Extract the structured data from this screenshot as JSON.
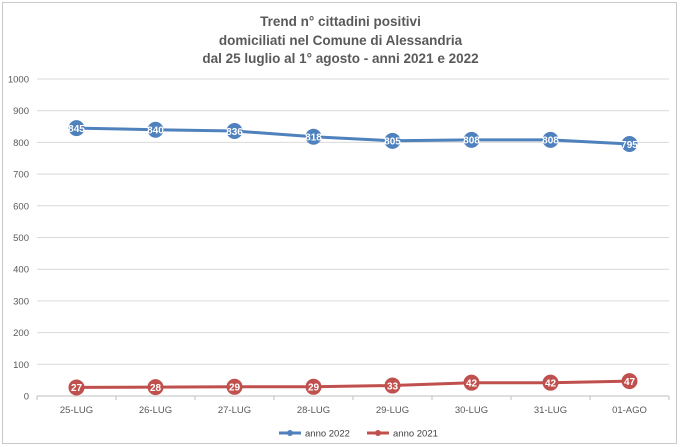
{
  "chart_data": {
    "type": "line",
    "title_lines": [
      "Trend n° cittadini positivi",
      "domiciliati nel Comune di Alessandria",
      "dal 25 luglio al 1° agosto - anni 2021 e 2022"
    ],
    "categories": [
      "25-LUG",
      "26-LUG",
      "27-LUG",
      "28-LUG",
      "29-LUG",
      "30-LUG",
      "31-LUG",
      "01-AGO"
    ],
    "series": [
      {
        "name": "anno 2022",
        "color": "#4f81bd",
        "values": [
          845,
          840,
          836,
          818,
          805,
          808,
          808,
          795
        ],
        "labels": [
          "845",
          "840",
          "836",
          "818",
          "805",
          "808",
          "808",
          "795"
        ]
      },
      {
        "name": "anno 2021",
        "color": "#c0504d",
        "values": [
          27,
          28,
          29,
          29,
          33,
          42,
          42,
          47
        ],
        "labels": [
          "27",
          "28",
          "29",
          "29",
          "33",
          "42",
          "42",
          "47"
        ]
      }
    ],
    "ylim": [
      0,
      1000
    ],
    "yticks": [
      0,
      100,
      200,
      300,
      400,
      500,
      600,
      700,
      800,
      900,
      1000
    ],
    "grid": true,
    "legend": "bottom",
    "xlabel": "",
    "ylabel": ""
  }
}
